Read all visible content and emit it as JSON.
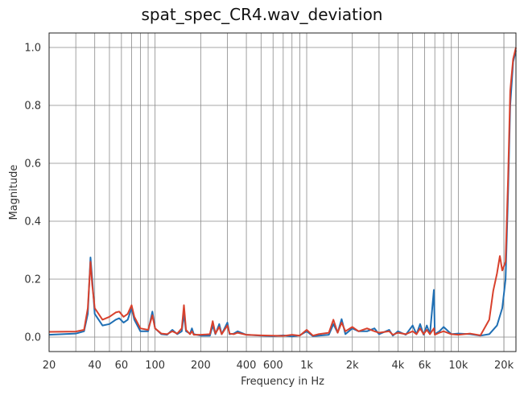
{
  "chart_data": {
    "type": "line",
    "title": "spat_spec_CR4.wav_deviation",
    "xlabel": "Frequency in Hz",
    "ylabel": "Magnitude",
    "xscale": "log",
    "xlim": [
      20,
      24000
    ],
    "ylim": [
      -0.05,
      1.05
    ],
    "grid": true,
    "x_ticks": [
      {
        "value": 20,
        "label": "20"
      },
      {
        "value": 40,
        "label": "40"
      },
      {
        "value": 60,
        "label": "60"
      },
      {
        "value": 100,
        "label": "100"
      },
      {
        "value": 200,
        "label": "200"
      },
      {
        "value": 400,
        "label": "400"
      },
      {
        "value": 600,
        "label": "600"
      },
      {
        "value": 1000,
        "label": "1k"
      },
      {
        "value": 2000,
        "label": "2k"
      },
      {
        "value": 4000,
        "label": "4k"
      },
      {
        "value": 6000,
        "label": "6k"
      },
      {
        "value": 10000,
        "label": "10k"
      },
      {
        "value": 20000,
        "label": "20k"
      }
    ],
    "y_ticks": [
      {
        "value": 0.0,
        "label": "0.0"
      },
      {
        "value": 0.2,
        "label": "0.2"
      },
      {
        "value": 0.4,
        "label": "0.4"
      },
      {
        "value": 0.6,
        "label": "0.6"
      },
      {
        "value": 0.8,
        "label": "0.8"
      },
      {
        "value": 1.0,
        "label": "1.0"
      }
    ],
    "series": [
      {
        "color": "#1f6fb4",
        "points": [
          [
            20,
            0.008
          ],
          [
            30,
            0.012
          ],
          [
            34,
            0.02
          ],
          [
            36,
            0.08
          ],
          [
            37.5,
            0.275
          ],
          [
            38.5,
            0.2
          ],
          [
            40,
            0.08
          ],
          [
            45,
            0.04
          ],
          [
            50,
            0.045
          ],
          [
            55,
            0.06
          ],
          [
            58,
            0.065
          ],
          [
            62,
            0.05
          ],
          [
            66,
            0.06
          ],
          [
            70,
            0.1
          ],
          [
            73,
            0.06
          ],
          [
            80,
            0.02
          ],
          [
            90,
            0.02
          ],
          [
            96,
            0.088
          ],
          [
            100,
            0.03
          ],
          [
            110,
            0.01
          ],
          [
            120,
            0.008
          ],
          [
            130,
            0.025
          ],
          [
            140,
            0.01
          ],
          [
            150,
            0.02
          ],
          [
            155,
            0.08
          ],
          [
            160,
            0.02
          ],
          [
            170,
            0.012
          ],
          [
            175,
            0.03
          ],
          [
            180,
            0.01
          ],
          [
            200,
            0.005
          ],
          [
            230,
            0.005
          ],
          [
            240,
            0.04
          ],
          [
            250,
            0.01
          ],
          [
            265,
            0.045
          ],
          [
            275,
            0.01
          ],
          [
            300,
            0.05
          ],
          [
            310,
            0.01
          ],
          [
            330,
            0.012
          ],
          [
            350,
            0.02
          ],
          [
            400,
            0.008
          ],
          [
            500,
            0.005
          ],
          [
            600,
            0.003
          ],
          [
            700,
            0.006
          ],
          [
            800,
            0.002
          ],
          [
            900,
            0.006
          ],
          [
            1000,
            0.02
          ],
          [
            1100,
            0.003
          ],
          [
            1200,
            0.005
          ],
          [
            1400,
            0.008
          ],
          [
            1500,
            0.045
          ],
          [
            1600,
            0.015
          ],
          [
            1700,
            0.062
          ],
          [
            1800,
            0.01
          ],
          [
            2000,
            0.03
          ],
          [
            2200,
            0.02
          ],
          [
            2500,
            0.02
          ],
          [
            2800,
            0.03
          ],
          [
            3000,
            0.01
          ],
          [
            3500,
            0.025
          ],
          [
            3700,
            0.005
          ],
          [
            4000,
            0.02
          ],
          [
            4500,
            0.008
          ],
          [
            5000,
            0.04
          ],
          [
            5300,
            0.01
          ],
          [
            5600,
            0.045
          ],
          [
            5900,
            0.008
          ],
          [
            6200,
            0.04
          ],
          [
            6500,
            0.01
          ],
          [
            6900,
            0.163
          ],
          [
            7000,
            0.01
          ],
          [
            7500,
            0.02
          ],
          [
            8000,
            0.035
          ],
          [
            9000,
            0.01
          ],
          [
            10000,
            0.012
          ],
          [
            12000,
            0.01
          ],
          [
            14000,
            0.005
          ],
          [
            16000,
            0.01
          ],
          [
            18000,
            0.04
          ],
          [
            19500,
            0.1
          ],
          [
            20500,
            0.2
          ],
          [
            21300,
            0.5
          ],
          [
            22000,
            0.8
          ],
          [
            23000,
            0.95
          ],
          [
            24000,
            0.99
          ]
        ]
      },
      {
        "color": "#d8412d",
        "points": [
          [
            20,
            0.018
          ],
          [
            30,
            0.019
          ],
          [
            34,
            0.025
          ],
          [
            36,
            0.1
          ],
          [
            37.5,
            0.26
          ],
          [
            38.5,
            0.18
          ],
          [
            40,
            0.1
          ],
          [
            45,
            0.06
          ],
          [
            50,
            0.07
          ],
          [
            55,
            0.085
          ],
          [
            58,
            0.088
          ],
          [
            62,
            0.07
          ],
          [
            66,
            0.08
          ],
          [
            70,
            0.11
          ],
          [
            73,
            0.07
          ],
          [
            80,
            0.03
          ],
          [
            90,
            0.025
          ],
          [
            96,
            0.075
          ],
          [
            100,
            0.03
          ],
          [
            110,
            0.012
          ],
          [
            120,
            0.01
          ],
          [
            130,
            0.02
          ],
          [
            140,
            0.012
          ],
          [
            150,
            0.03
          ],
          [
            155,
            0.11
          ],
          [
            160,
            0.025
          ],
          [
            170,
            0.01
          ],
          [
            175,
            0.02
          ],
          [
            180,
            0.008
          ],
          [
            200,
            0.008
          ],
          [
            230,
            0.01
          ],
          [
            240,
            0.055
          ],
          [
            250,
            0.012
          ],
          [
            265,
            0.035
          ],
          [
            275,
            0.01
          ],
          [
            300,
            0.04
          ],
          [
            310,
            0.012
          ],
          [
            330,
            0.01
          ],
          [
            350,
            0.015
          ],
          [
            400,
            0.008
          ],
          [
            500,
            0.006
          ],
          [
            600,
            0.005
          ],
          [
            700,
            0.004
          ],
          [
            800,
            0.008
          ],
          [
            900,
            0.005
          ],
          [
            1000,
            0.025
          ],
          [
            1100,
            0.005
          ],
          [
            1200,
            0.01
          ],
          [
            1400,
            0.015
          ],
          [
            1500,
            0.06
          ],
          [
            1600,
            0.015
          ],
          [
            1700,
            0.05
          ],
          [
            1800,
            0.02
          ],
          [
            2000,
            0.035
          ],
          [
            2200,
            0.02
          ],
          [
            2500,
            0.03
          ],
          [
            2800,
            0.02
          ],
          [
            3000,
            0.015
          ],
          [
            3500,
            0.02
          ],
          [
            3700,
            0.008
          ],
          [
            4000,
            0.015
          ],
          [
            4500,
            0.01
          ],
          [
            5000,
            0.02
          ],
          [
            5300,
            0.01
          ],
          [
            5600,
            0.03
          ],
          [
            5900,
            0.01
          ],
          [
            6200,
            0.025
          ],
          [
            6500,
            0.01
          ],
          [
            6900,
            0.03
          ],
          [
            7000,
            0.008
          ],
          [
            7500,
            0.015
          ],
          [
            8000,
            0.02
          ],
          [
            9000,
            0.01
          ],
          [
            10000,
            0.008
          ],
          [
            12000,
            0.012
          ],
          [
            14000,
            0.006
          ],
          [
            16000,
            0.06
          ],
          [
            17000,
            0.16
          ],
          [
            18000,
            0.22
          ],
          [
            18800,
            0.28
          ],
          [
            19500,
            0.23
          ],
          [
            20500,
            0.26
          ],
          [
            21300,
            0.55
          ],
          [
            22000,
            0.85
          ],
          [
            23000,
            0.96
          ],
          [
            24000,
            1.0
          ]
        ]
      }
    ]
  }
}
